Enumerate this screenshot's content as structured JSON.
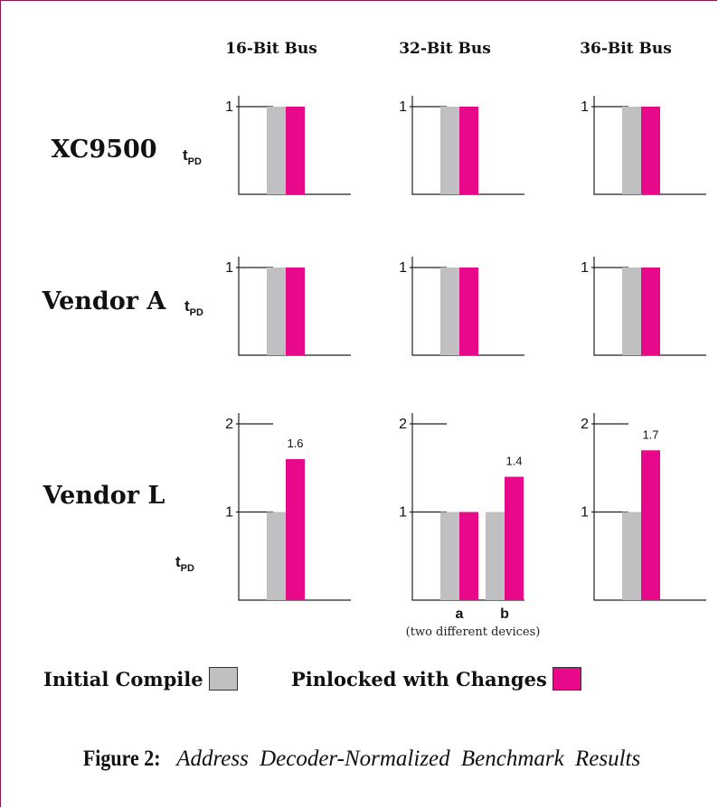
{
  "colors": {
    "initial": "#c0c0c2",
    "pinlocked": "#e8098a",
    "frame": "#8a1a4a"
  },
  "chart_data": {
    "type": "bar",
    "columns": [
      "16-Bit Bus",
      "32-Bit Bus",
      "36-Bit Bus"
    ],
    "rows": [
      "XC9500",
      "Vendor A",
      "Vendor L"
    ],
    "ylabel": "t",
    "ylabel_sub": "PD",
    "series_names": [
      "Initial Compile",
      "Pinlocked with Changes"
    ],
    "panels": [
      {
        "row": 0,
        "col": 0,
        "ylim": [
          0,
          1
        ],
        "ticks": [
          1
        ],
        "groups": [
          {
            "label": "",
            "values": [
              1,
              1
            ],
            "labels": [
              "",
              ""
            ]
          }
        ]
      },
      {
        "row": 0,
        "col": 1,
        "ylim": [
          0,
          1
        ],
        "ticks": [
          1
        ],
        "groups": [
          {
            "label": "",
            "values": [
              1,
              1
            ],
            "labels": [
              "",
              ""
            ]
          }
        ]
      },
      {
        "row": 0,
        "col": 2,
        "ylim": [
          0,
          1
        ],
        "ticks": [
          1
        ],
        "groups": [
          {
            "label": "",
            "values": [
              1,
              1
            ],
            "labels": [
              "",
              ""
            ]
          }
        ]
      },
      {
        "row": 1,
        "col": 0,
        "ylim": [
          0,
          1
        ],
        "ticks": [
          1
        ],
        "groups": [
          {
            "label": "",
            "values": [
              1,
              1
            ],
            "labels": [
              "",
              ""
            ]
          }
        ]
      },
      {
        "row": 1,
        "col": 1,
        "ylim": [
          0,
          1
        ],
        "ticks": [
          1
        ],
        "groups": [
          {
            "label": "",
            "values": [
              1,
              1
            ],
            "labels": [
              "",
              ""
            ]
          }
        ]
      },
      {
        "row": 1,
        "col": 2,
        "ylim": [
          0,
          1
        ],
        "ticks": [
          1
        ],
        "groups": [
          {
            "label": "",
            "values": [
              1,
              1
            ],
            "labels": [
              "",
              ""
            ]
          }
        ]
      },
      {
        "row": 2,
        "col": 0,
        "ylim": [
          0,
          2
        ],
        "ticks": [
          1,
          2
        ],
        "groups": [
          {
            "label": "",
            "values": [
              1,
              1.6
            ],
            "labels": [
              "",
              "1.6"
            ]
          }
        ]
      },
      {
        "row": 2,
        "col": 1,
        "ylim": [
          0,
          2
        ],
        "ticks": [
          1,
          2
        ],
        "note": "(two different devices)",
        "groups": [
          {
            "label": "a",
            "values": [
              1,
              1
            ],
            "labels": [
              "",
              ""
            ]
          },
          {
            "label": "b",
            "values": [
              1,
              1.4
            ],
            "labels": [
              "",
              "1.4"
            ]
          }
        ]
      },
      {
        "row": 2,
        "col": 2,
        "ylim": [
          0,
          2
        ],
        "ticks": [
          1,
          2
        ],
        "groups": [
          {
            "label": "",
            "values": [
              1,
              1.7
            ],
            "labels": [
              "",
              "1.7"
            ]
          }
        ]
      }
    ]
  },
  "legend": {
    "initial_label": "Initial Compile",
    "pinlocked_label": "Pinlocked with Changes"
  },
  "caption": {
    "figure_label": "Figure 2:",
    "text": "Address Decoder-Normalized Benchmark Results"
  }
}
